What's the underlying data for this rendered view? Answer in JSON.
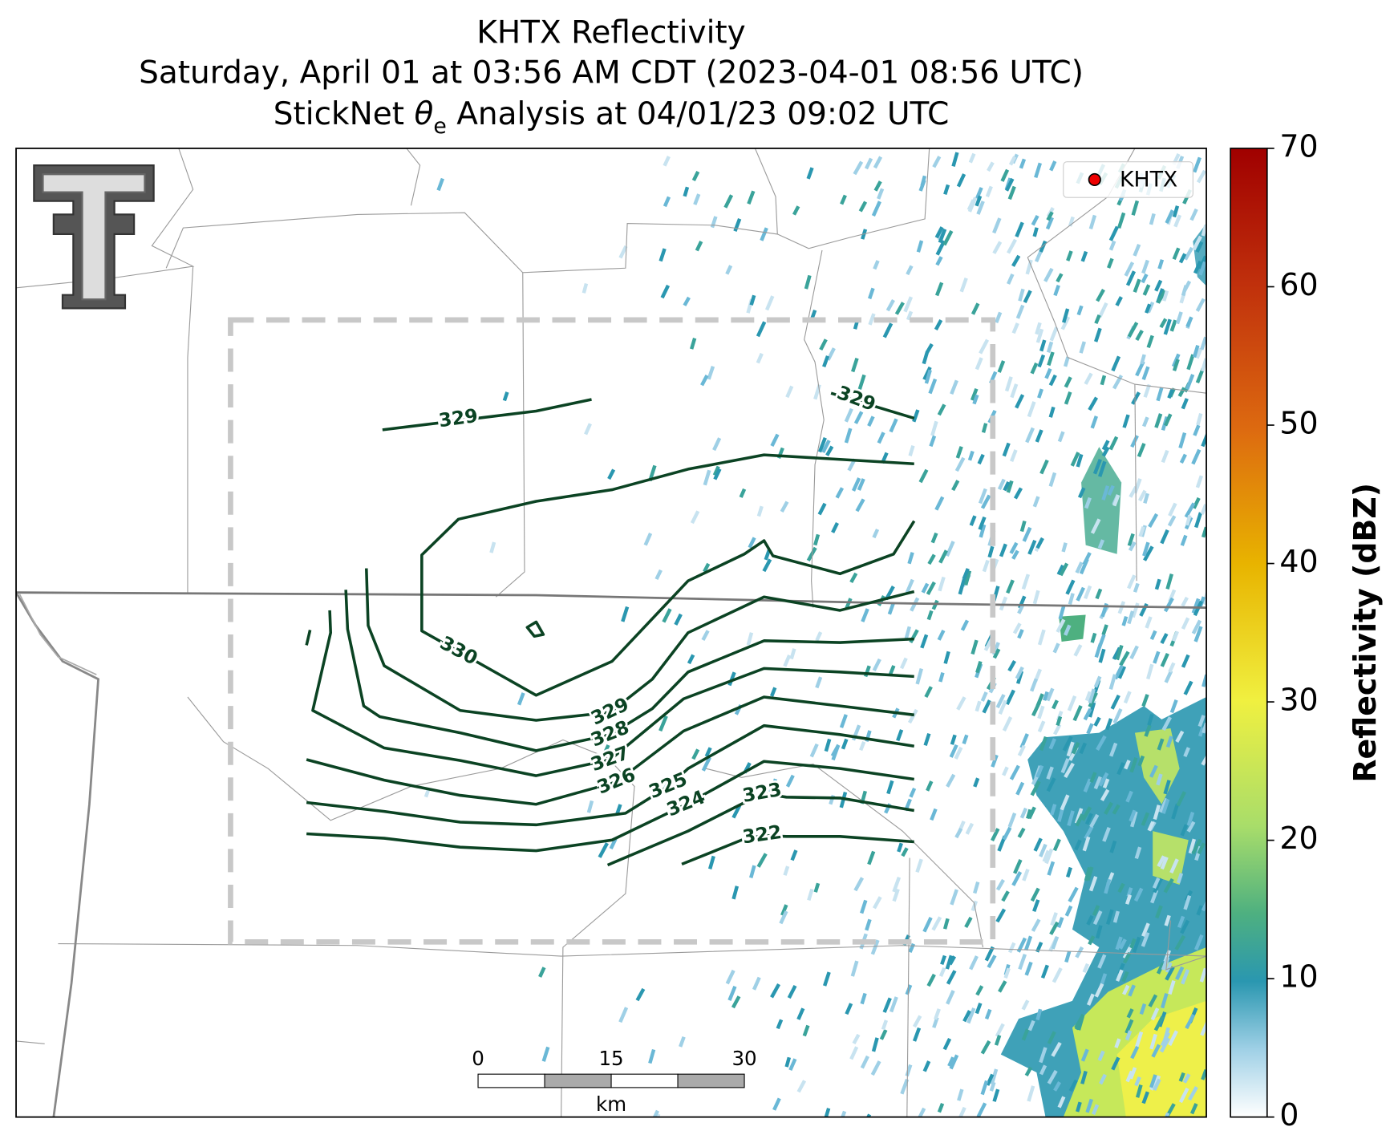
{
  "title": [
    "KHTX Reflectivity",
    "Saturday, April 01 at 03:56 AM CDT (2023-04-01 08:56 UTC)"
  ],
  "subtitle": {
    "prefix": "StickNet",
    "symbol": "θ",
    "subscript": "e",
    "suffix": "Analysis at 04/01/23 09:02 UTC"
  },
  "legend": {
    "label": "KHTX"
  },
  "contour_labels": [
    329,
    329,
    330,
    329,
    328,
    327,
    326,
    325,
    324,
    323,
    322
  ],
  "scale_bar": {
    "ticks": [
      0,
      15,
      30
    ],
    "unit": "km"
  },
  "colorbar": {
    "label": "Reflectivity (dBZ)",
    "lim": [
      0,
      70
    ],
    "ticks": [
      0,
      10,
      20,
      30,
      40,
      50,
      60,
      70
    ]
  }
}
